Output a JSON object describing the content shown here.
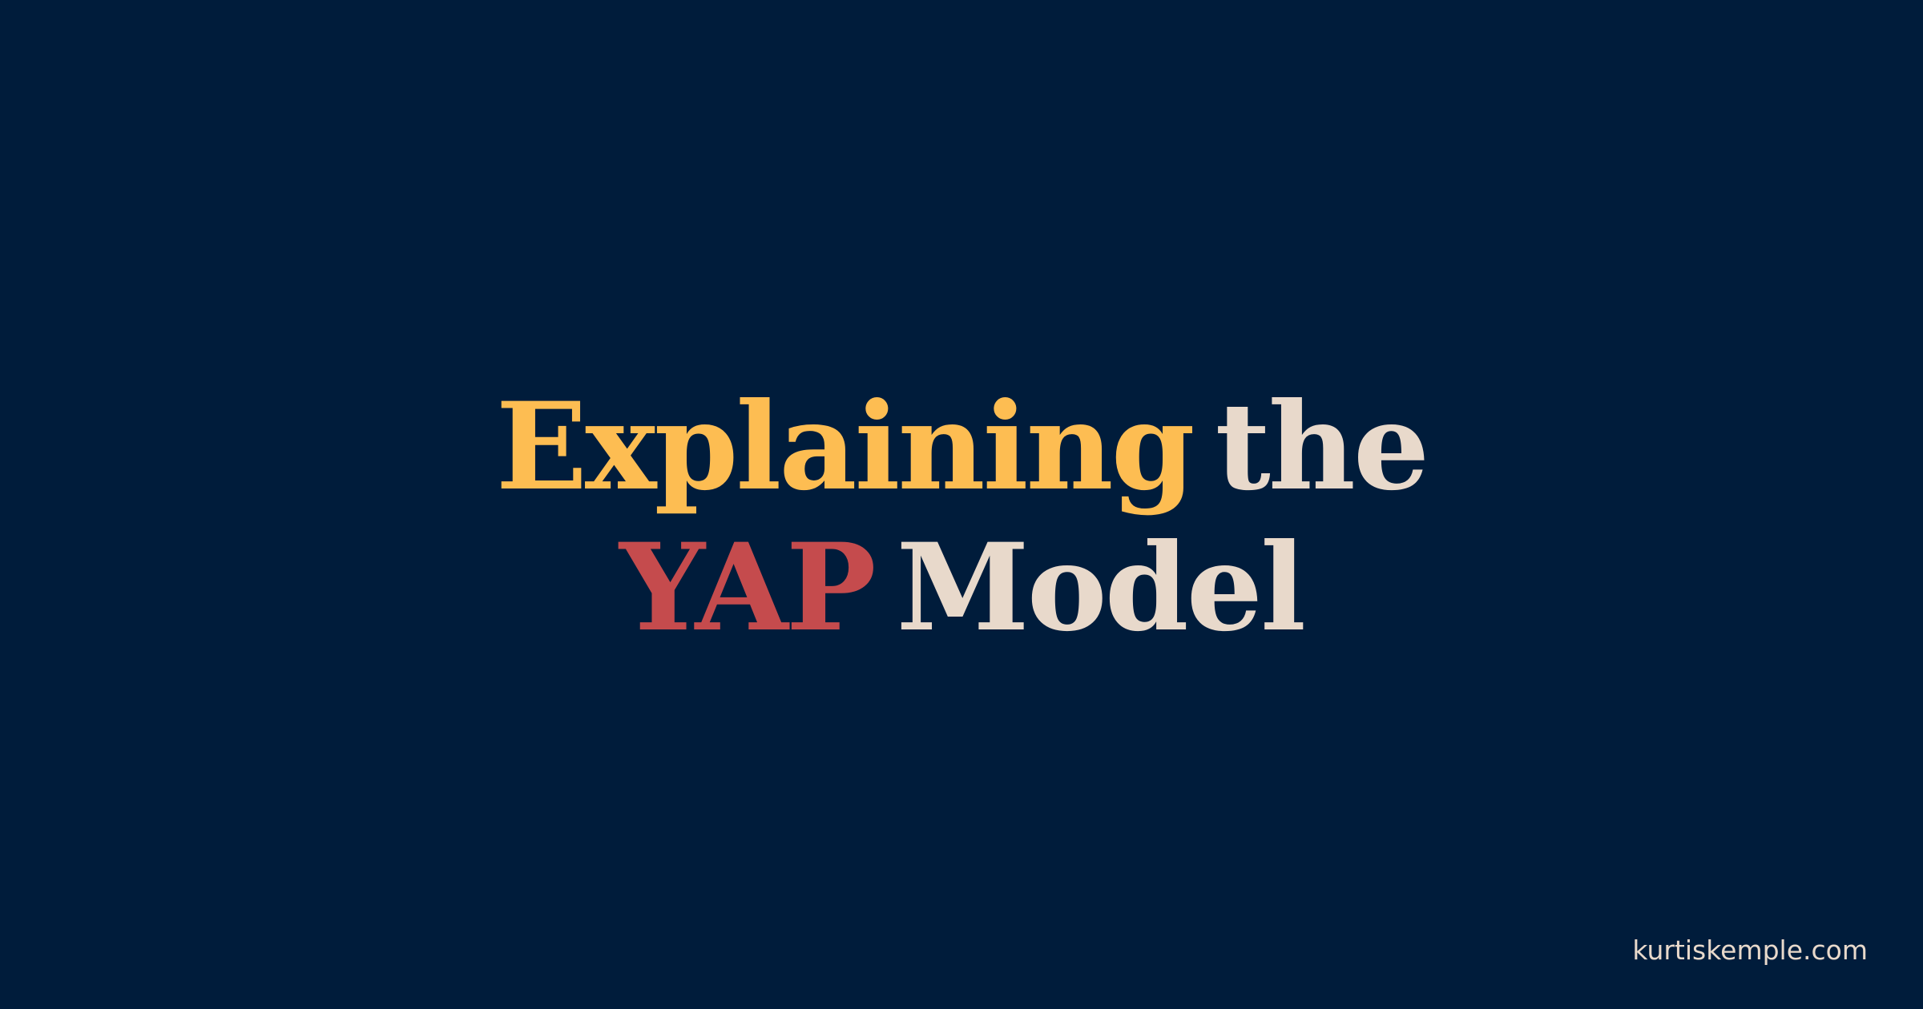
{
  "title": {
    "line1": [
      {
        "text": "Explaining",
        "color": "#fdbd52"
      },
      {
        "text": "the",
        "color": "#e8d9cb"
      }
    ],
    "line2": [
      {
        "text": "YAP",
        "color": "#c54b4d"
      },
      {
        "text": "Model",
        "color": "#e8d9cb"
      }
    ]
  },
  "footer": {
    "site": "kurtiskemple.com",
    "color": "#e8d9cb"
  },
  "colors": {
    "background": "#001c3b"
  }
}
